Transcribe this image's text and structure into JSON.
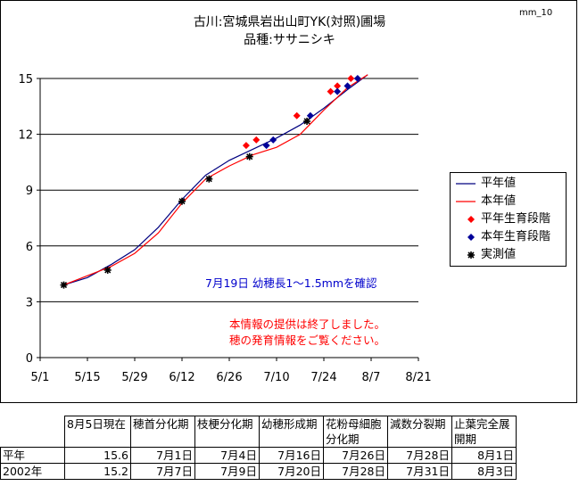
{
  "page_id": "mm_10",
  "title_line1": "古川:宮城県岩出山町YK(対照)圃場",
  "title_line2": "品種:ササニシキ",
  "note_confirm": "7月19日  幼穂長1～1.5mmを確認",
  "note_end_line1": "本情報の提供は終了しました。",
  "note_end_line2": "穂の発育情報をご覧ください。",
  "colors": {
    "normal_line": "#000080",
    "current_line": "#ff0000",
    "normal_stage": "#ff0000",
    "current_stage": "#000099",
    "observed": "#000000",
    "note_blue": "#0000cc",
    "note_red": "#ff0000"
  },
  "legend": [
    {
      "key": "normal_line",
      "label": "平年値",
      "symbol": "line"
    },
    {
      "key": "current_line",
      "label": "本年値",
      "symbol": "line"
    },
    {
      "key": "normal_stage",
      "label": "平年生育段階",
      "symbol": "diamond"
    },
    {
      "key": "current_stage",
      "label": "本年生育段階",
      "symbol": "diamond"
    },
    {
      "key": "observed",
      "label": "実測値",
      "symbol": "asterisk"
    }
  ],
  "chart_data": {
    "type": "line",
    "x_type": "date",
    "year": 2002,
    "xlim": [
      "2002-05-01",
      "2002-08-21"
    ],
    "ylim": [
      0,
      15
    ],
    "x_tick_labels": [
      "5/1",
      "5/15",
      "5/29",
      "6/12",
      "6/26",
      "7/10",
      "7/24",
      "8/7",
      "8/21"
    ],
    "x_tick_dates": [
      "2002-05-01",
      "2002-05-15",
      "2002-05-29",
      "2002-06-12",
      "2002-06-26",
      "2002-07-10",
      "2002-07-24",
      "2002-08-07",
      "2002-08-21"
    ],
    "y_ticks": [
      0,
      3,
      6,
      9,
      12,
      15
    ],
    "grid": "horizontal",
    "legend_position": "right",
    "series": [
      {
        "name": "平年値",
        "kind": "line",
        "color_key": "normal_line",
        "points": [
          [
            "2002-05-08",
            3.9
          ],
          [
            "2002-05-15",
            4.3
          ],
          [
            "2002-05-22",
            5.0
          ],
          [
            "2002-05-29",
            5.8
          ],
          [
            "2002-06-05",
            7.0
          ],
          [
            "2002-06-12",
            8.5
          ],
          [
            "2002-06-19",
            9.8
          ],
          [
            "2002-06-26",
            10.6
          ],
          [
            "2002-07-03",
            11.2
          ],
          [
            "2002-07-10",
            11.8
          ],
          [
            "2002-07-17",
            12.5
          ],
          [
            "2002-07-24",
            13.4
          ],
          [
            "2002-07-31",
            14.4
          ],
          [
            "2002-08-03",
            14.8
          ],
          [
            "2002-08-06",
            15.2
          ]
        ]
      },
      {
        "name": "本年値",
        "kind": "line",
        "color_key": "current_line",
        "points": [
          [
            "2002-05-08",
            3.9
          ],
          [
            "2002-05-15",
            4.4
          ],
          [
            "2002-05-22",
            4.9
          ],
          [
            "2002-05-29",
            5.6
          ],
          [
            "2002-06-05",
            6.7
          ],
          [
            "2002-06-12",
            8.3
          ],
          [
            "2002-06-19",
            9.6
          ],
          [
            "2002-06-26",
            10.3
          ],
          [
            "2002-07-03",
            10.9
          ],
          [
            "2002-07-10",
            11.3
          ],
          [
            "2002-07-17",
            12.0
          ],
          [
            "2002-07-24",
            13.3
          ],
          [
            "2002-07-31",
            14.5
          ],
          [
            "2002-08-06",
            15.2
          ]
        ]
      },
      {
        "name": "平年生育段階",
        "kind": "marker",
        "marker": "diamond",
        "color_key": "normal_stage",
        "points": [
          [
            "2002-07-01",
            11.4
          ],
          [
            "2002-07-04",
            11.7
          ],
          [
            "2002-07-16",
            13.0
          ],
          [
            "2002-07-26",
            14.3
          ],
          [
            "2002-07-28",
            14.6
          ],
          [
            "2002-08-01",
            15.0
          ]
        ]
      },
      {
        "name": "本年生育段階",
        "kind": "marker",
        "marker": "diamond",
        "color_key": "current_stage",
        "points": [
          [
            "2002-07-07",
            11.4
          ],
          [
            "2002-07-09",
            11.7
          ],
          [
            "2002-07-20",
            13.0
          ],
          [
            "2002-07-28",
            14.3
          ],
          [
            "2002-07-31",
            14.6
          ],
          [
            "2002-08-03",
            15.0
          ]
        ]
      },
      {
        "name": "実測値",
        "kind": "marker",
        "marker": "asterisk",
        "color_key": "observed",
        "points": [
          [
            "2002-05-08",
            3.9
          ],
          [
            "2002-05-21",
            4.7
          ],
          [
            "2002-06-12",
            8.4
          ],
          [
            "2002-06-20",
            9.6
          ],
          [
            "2002-07-02",
            10.8
          ],
          [
            "2002-07-19",
            12.7
          ]
        ]
      }
    ]
  },
  "table": {
    "headers": [
      "8月5日現在",
      "穂首分化期",
      "枝梗分化期",
      "幼穂形成期",
      "花粉母細胞分化期",
      "減数分裂期",
      "止葉完全展開期"
    ],
    "rows": [
      {
        "label": "平年",
        "values": [
          "15.6",
          "7月1日",
          "7月4日",
          "7月16日",
          "7月26日",
          "7月28日",
          "8月1日"
        ]
      },
      {
        "label": "2002年",
        "values": [
          "15.2",
          "7月7日",
          "7月9日",
          "7月20日",
          "7月28日",
          "7月31日",
          "8月3日"
        ]
      }
    ]
  }
}
